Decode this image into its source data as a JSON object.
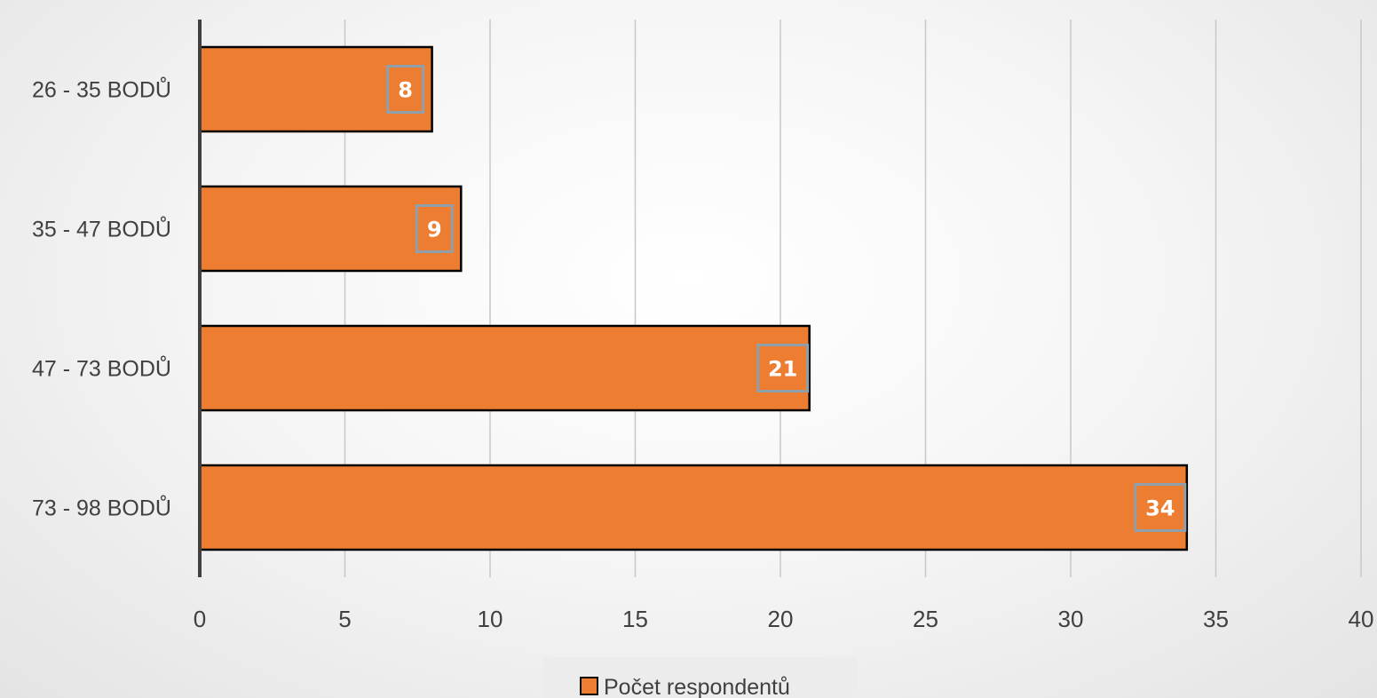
{
  "chart_data": {
    "type": "bar",
    "orientation": "horizontal",
    "categories": [
      "26 - 35 BODŮ",
      "35 - 47 BODŮ",
      "47 - 73 BODŮ",
      "73 - 98 BODŮ"
    ],
    "series": [
      {
        "name": "Počet respondentů",
        "values": [
          8,
          9,
          21,
          34
        ],
        "color": "#ED7D31"
      }
    ],
    "xlim": [
      0,
      40
    ],
    "xticks": [
      0,
      5,
      10,
      15,
      20,
      25,
      30,
      35,
      40
    ],
    "title": "",
    "xlabel": "",
    "ylabel": "",
    "grid": "vertical",
    "legend": "bottom",
    "data_labels": true
  }
}
